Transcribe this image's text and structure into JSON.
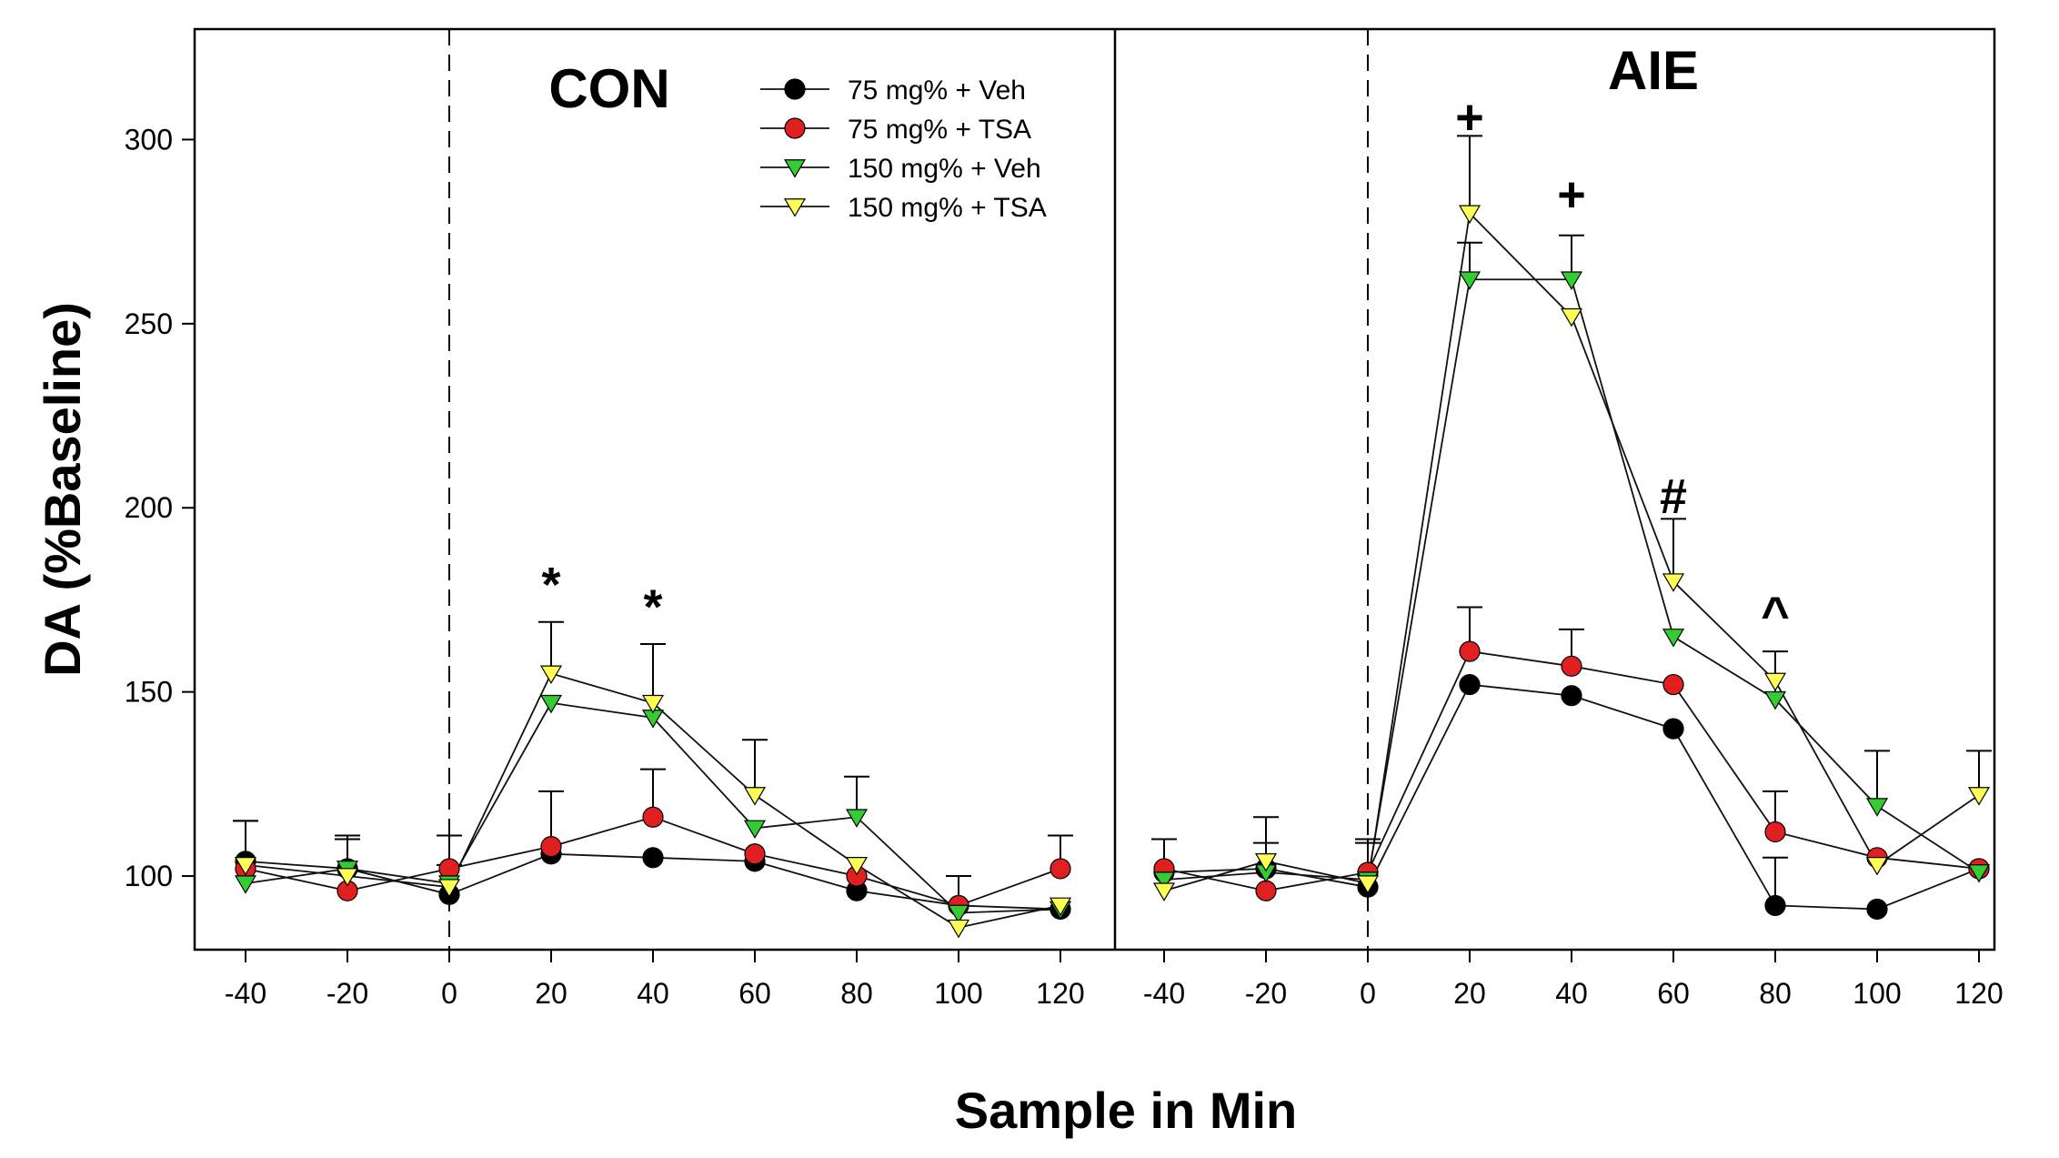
{
  "chart_data": {
    "type": "line",
    "ylabel": "DA (%Baseline)",
    "xlabel": "Sample in Min",
    "ylim": [
      80,
      330
    ],
    "yticks": [
      100,
      150,
      200,
      250,
      300
    ],
    "x": [
      -40,
      -20,
      0,
      20,
      40,
      60,
      80,
      100,
      120
    ],
    "xtick_labels": [
      "-40",
      "-20",
      "0",
      "20",
      "40",
      "60",
      "80",
      "100",
      "120"
    ],
    "injection_time": 0,
    "grid": false,
    "legend": {
      "position": "top-right of CON panel",
      "entries": [
        "75 mg% + Veh",
        "75 mg% + TSA",
        "150 mg% + Veh",
        "150 mg% + TSA"
      ]
    },
    "series_styles": [
      {
        "marker": "circle",
        "fill": "#000000"
      },
      {
        "marker": "circle",
        "fill": "#e02020"
      },
      {
        "marker": "triangle-down",
        "fill": "#33cc33"
      },
      {
        "marker": "triangle-down",
        "fill": "#ffff55"
      }
    ],
    "panels": [
      {
        "title": "CON",
        "series": [
          {
            "name": "75 mg% + Veh",
            "values": [
              104,
              102,
              95,
              106,
              105,
              104,
              96,
              92,
              91
            ],
            "errors": [
              11,
              8,
              8,
              0,
              0,
              0,
              0,
              0,
              0
            ]
          },
          {
            "name": "75 mg% + TSA",
            "values": [
              102,
              96,
              102,
              108,
              116,
              106,
              100,
              92,
              102
            ],
            "errors": [
              0,
              0,
              9,
              15,
              13,
              0,
              0,
              8,
              9
            ]
          },
          {
            "name": "150 mg% + Veh",
            "values": [
              98,
              102,
              98,
              147,
              143,
              113,
              116,
              90,
              91
            ],
            "errors": [
              0,
              8,
              0,
              0,
              0,
              0,
              11,
              0,
              0
            ]
          },
          {
            "name": "150 mg% + TSA",
            "values": [
              103,
              100,
              97,
              155,
              147,
              122,
              103,
              86,
              92
            ],
            "errors": [
              12,
              11,
              0,
              14,
              16,
              15,
              0,
              0,
              0
            ]
          }
        ],
        "annotations": [
          {
            "text": "*",
            "x": 20,
            "y": 179
          },
          {
            "text": "*",
            "x": 40,
            "y": 173
          }
        ]
      },
      {
        "title": "AIE",
        "series": [
          {
            "name": "75 mg% + Veh",
            "values": [
              101,
              102,
              97,
              152,
              149,
              140,
              92,
              91,
              102
            ],
            "errors": [
              0,
              7,
              0,
              0,
              0,
              0,
              13,
              0,
              0
            ]
          },
          {
            "name": "75 mg% + TSA",
            "values": [
              102,
              96,
              101,
              161,
              157,
              152,
              112,
              105,
              102
            ],
            "errors": [
              0,
              0,
              9,
              12,
              10,
              0,
              11,
              0,
              0
            ]
          },
          {
            "name": "150 mg% + Veh",
            "values": [
              99,
              101,
              99,
              262,
              262,
              165,
              148,
              119,
              101
            ],
            "errors": [
              0,
              0,
              0,
              10,
              12,
              0,
              13,
              15,
              0
            ]
          },
          {
            "name": "150 mg% + TSA",
            "values": [
              96,
              104,
              98,
              280,
              252,
              180,
              153,
              103,
              122
            ],
            "errors": [
              14,
              12,
              11,
              21,
              0,
              17,
              0,
              0,
              12
            ]
          }
        ],
        "annotations": [
          {
            "text": "+",
            "x": 20,
            "y": 306
          },
          {
            "text": "+",
            "x": 40,
            "y": 285
          },
          {
            "text": "#",
            "x": 60,
            "y": 203
          },
          {
            "text": "^",
            "x": 80,
            "y": 171
          }
        ]
      }
    ]
  }
}
